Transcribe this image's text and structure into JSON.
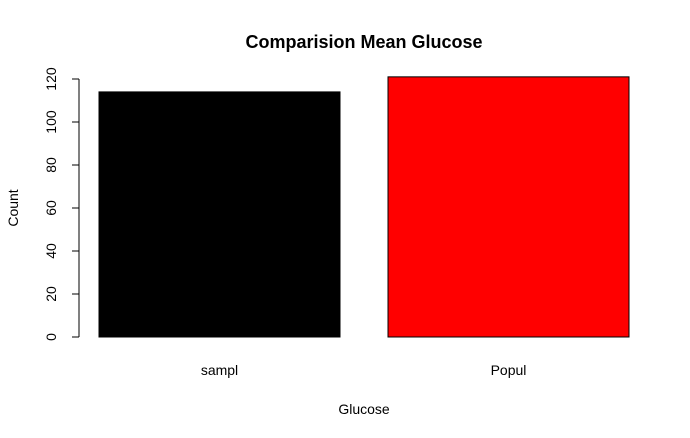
{
  "chart_data": {
    "type": "bar",
    "title": "Comparision Mean Glucose",
    "xlabel": "Glucose",
    "ylabel": "Count",
    "categories": [
      "sampl",
      "Popul"
    ],
    "values": [
      114,
      121
    ],
    "colors": [
      "#000000",
      "#ff0000"
    ],
    "ylim": [
      0,
      120
    ],
    "yticks": [
      0,
      20,
      40,
      60,
      80,
      100,
      120
    ],
    "grid": false,
    "legend": "none"
  }
}
